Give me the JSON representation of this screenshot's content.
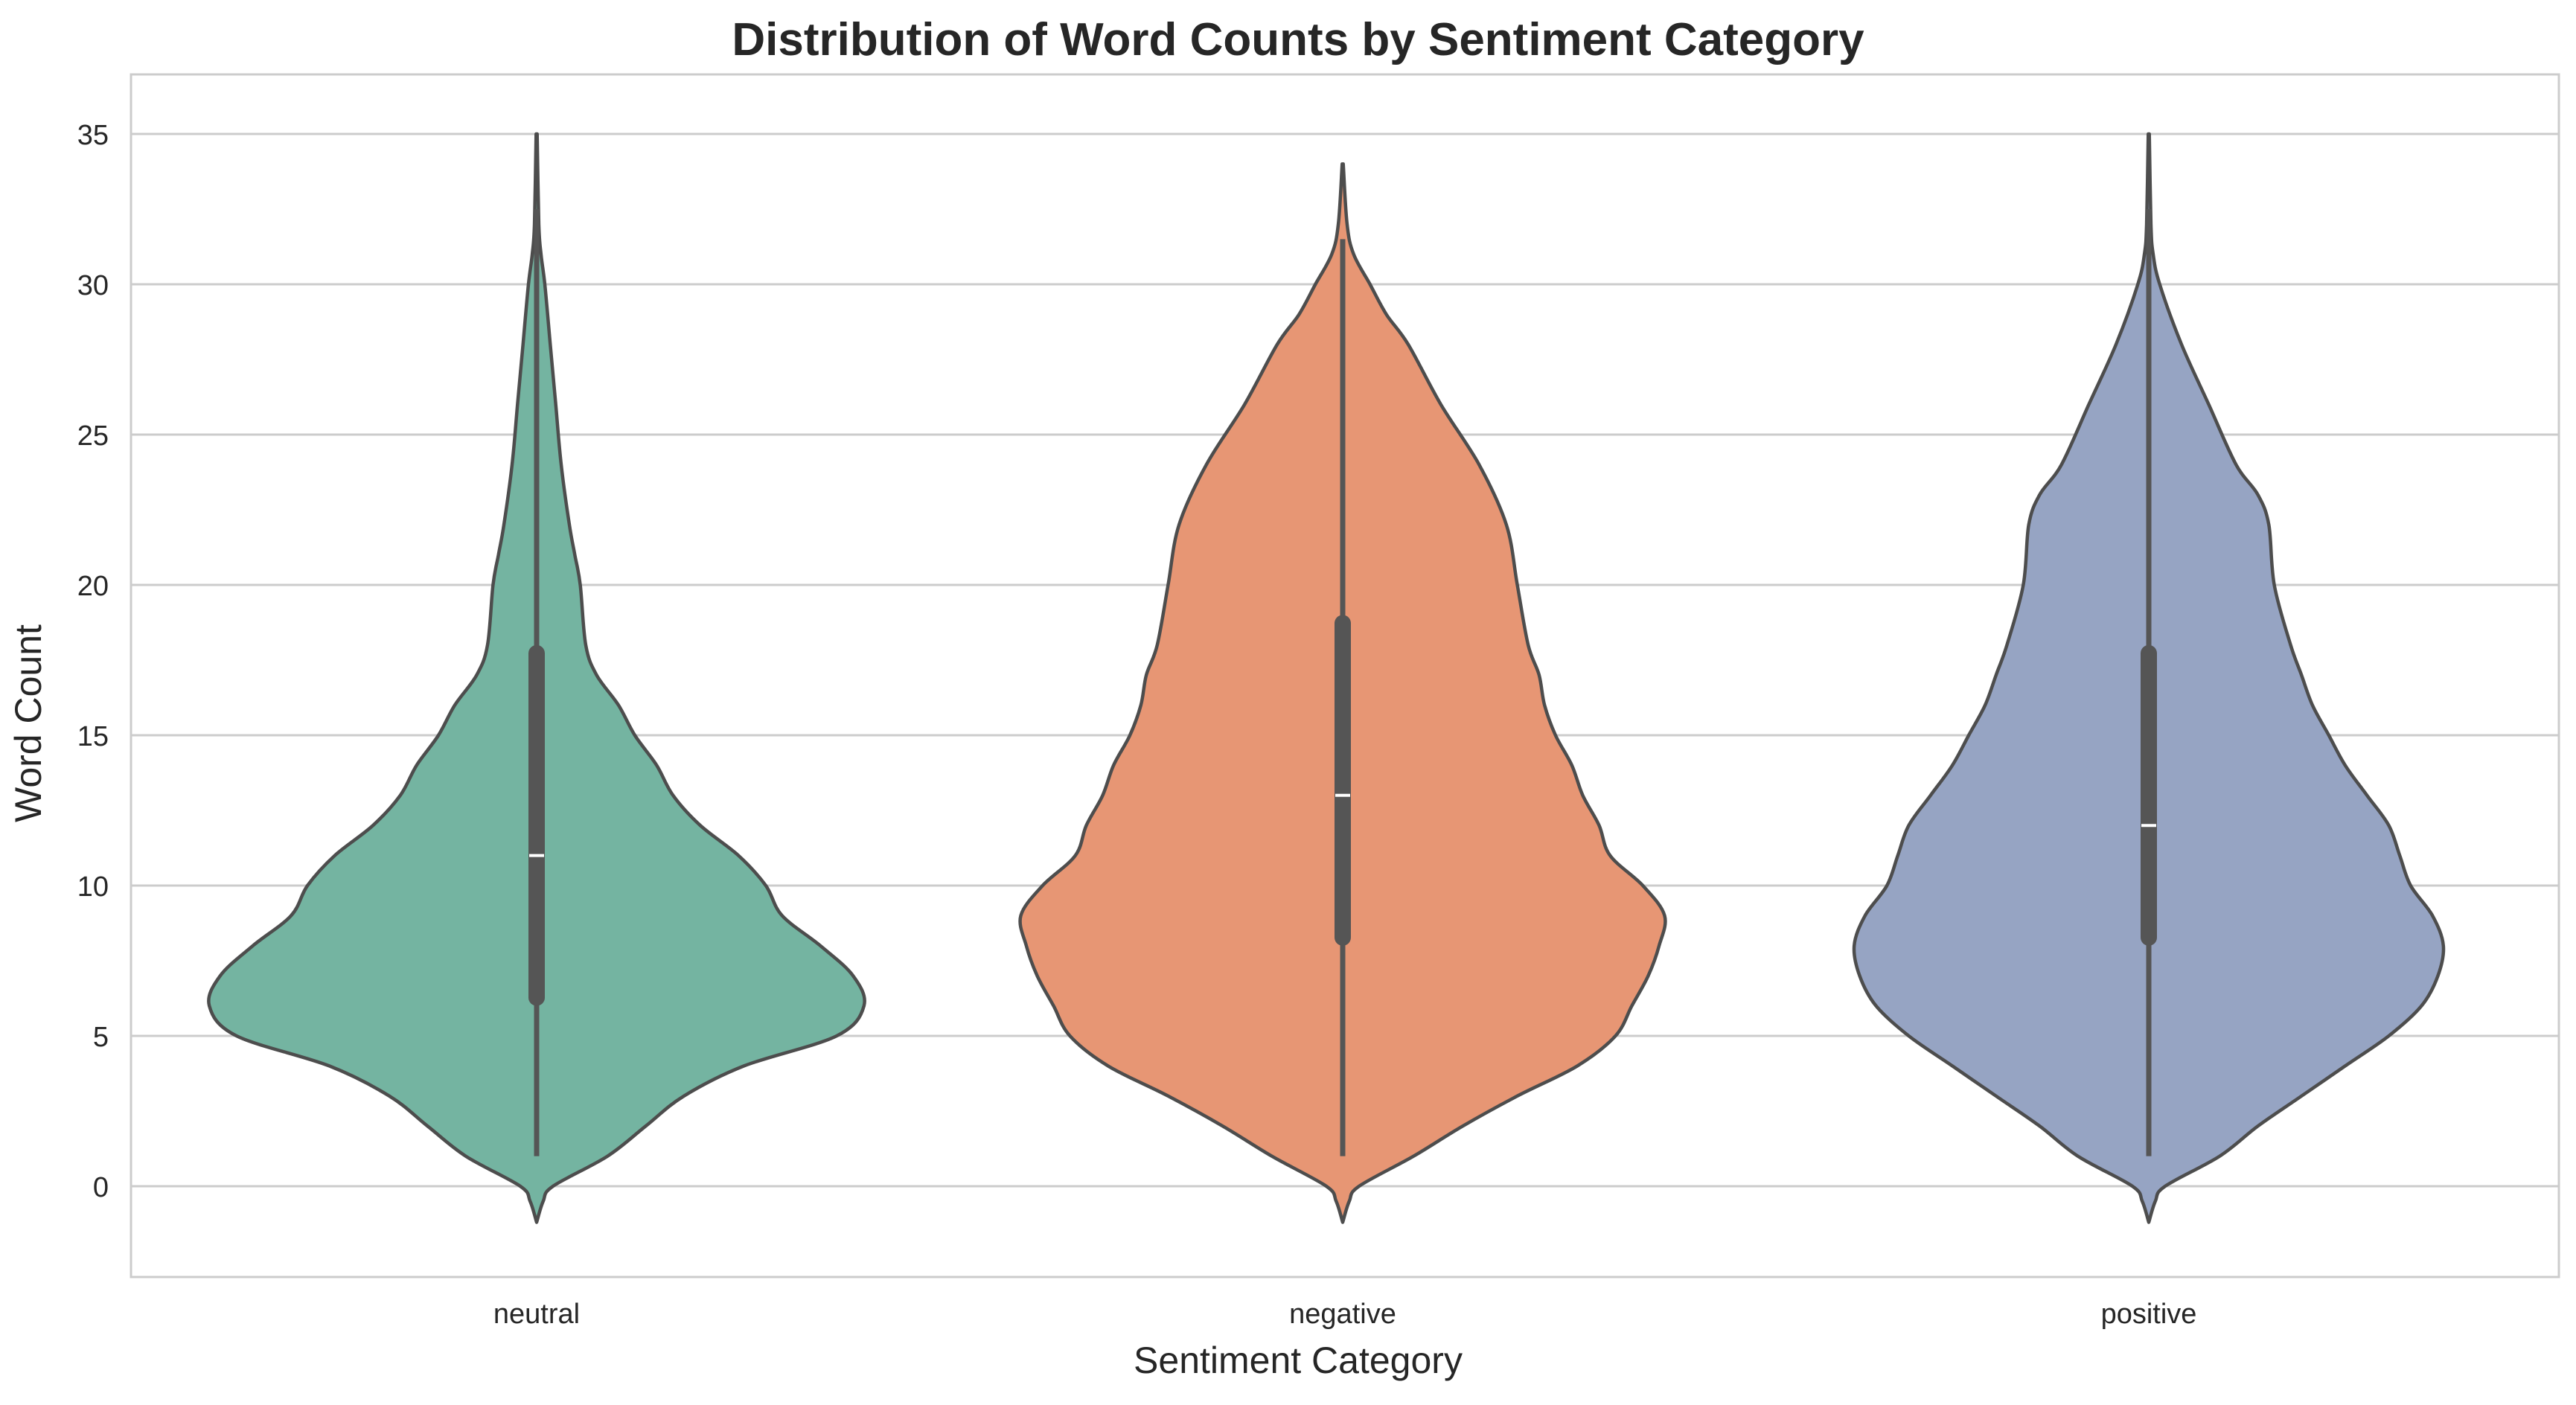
{
  "chart_data": {
    "type": "violin",
    "title": "Distribution of Word Counts by Sentiment Category",
    "xlabel": "Sentiment Category",
    "ylabel": "Word Count",
    "ylim": [
      -3,
      37
    ],
    "yticks": [
      "0",
      "5",
      "10",
      "15",
      "20",
      "25",
      "30",
      "35"
    ],
    "ytick_values": [
      0,
      5,
      10,
      15,
      20,
      25,
      30,
      35
    ],
    "grid": "horizontal",
    "categories": [
      "neutral",
      "negative",
      "positive"
    ],
    "series": [
      {
        "category": "neutral",
        "color": "#74b4a1",
        "min": 1,
        "q1": 6,
        "median": 11,
        "q3": 18,
        "max": 35,
        "kde_min": -1.2,
        "kde_max": 35,
        "density_width": [
          [
            -1.2,
            0
          ],
          [
            -0.5,
            0.012
          ],
          [
            0,
            0.03
          ],
          [
            1,
            0.13
          ],
          [
            2,
            0.2
          ],
          [
            3,
            0.27
          ],
          [
            4,
            0.38
          ],
          [
            5,
            0.55
          ],
          [
            6,
            0.6
          ],
          [
            7,
            0.58
          ],
          [
            8,
            0.52
          ],
          [
            9,
            0.45
          ],
          [
            10,
            0.42
          ],
          [
            11,
            0.37
          ],
          [
            12,
            0.3
          ],
          [
            13,
            0.25
          ],
          [
            14,
            0.22
          ],
          [
            15,
            0.18
          ],
          [
            16,
            0.15
          ],
          [
            17,
            0.11
          ],
          [
            18,
            0.09
          ],
          [
            20,
            0.08
          ],
          [
            21,
            0.07
          ],
          [
            22,
            0.06
          ],
          [
            24,
            0.045
          ],
          [
            26,
            0.035
          ],
          [
            28,
            0.025
          ],
          [
            30,
            0.015
          ],
          [
            31,
            0.008
          ],
          [
            32,
            0.004
          ],
          [
            35,
            0.001
          ]
        ]
      },
      {
        "category": "negative",
        "color": "#e79674",
        "min": 1,
        "q1": 8,
        "median": 13,
        "q3": 19,
        "max": 34,
        "kde_min": -1.2,
        "kde_max": 34,
        "density_width": [
          [
            -1.2,
            0
          ],
          [
            -0.5,
            0.012
          ],
          [
            0,
            0.03
          ],
          [
            1,
            0.13
          ],
          [
            2,
            0.22
          ],
          [
            3,
            0.32
          ],
          [
            4,
            0.43
          ],
          [
            5,
            0.5
          ],
          [
            6,
            0.53
          ],
          [
            7,
            0.56
          ],
          [
            8,
            0.58
          ],
          [
            9,
            0.59
          ],
          [
            10,
            0.55
          ],
          [
            11,
            0.49
          ],
          [
            12,
            0.47
          ],
          [
            13,
            0.44
          ],
          [
            14,
            0.42
          ],
          [
            15,
            0.39
          ],
          [
            16,
            0.37
          ],
          [
            17,
            0.36
          ],
          [
            18,
            0.34
          ],
          [
            20,
            0.32
          ],
          [
            22,
            0.3
          ],
          [
            24,
            0.25
          ],
          [
            26,
            0.18
          ],
          [
            28,
            0.12
          ],
          [
            29,
            0.08
          ],
          [
            30,
            0.05
          ],
          [
            31,
            0.02
          ],
          [
            32,
            0.008
          ],
          [
            34,
            0.001
          ]
        ]
      },
      {
        "category": "positive",
        "color": "#96a4c3",
        "min": 1,
        "q1": 8,
        "median": 12,
        "q3": 18,
        "max": 35,
        "kde_min": -1.2,
        "kde_max": 35,
        "density_width": [
          [
            -1.2,
            0
          ],
          [
            -0.5,
            0.012
          ],
          [
            0,
            0.03
          ],
          [
            1,
            0.13
          ],
          [
            2,
            0.2
          ],
          [
            3,
            0.28
          ],
          [
            4,
            0.36
          ],
          [
            5,
            0.44
          ],
          [
            6,
            0.5
          ],
          [
            7,
            0.53
          ],
          [
            8,
            0.54
          ],
          [
            9,
            0.52
          ],
          [
            10,
            0.48
          ],
          [
            11,
            0.46
          ],
          [
            12,
            0.44
          ],
          [
            13,
            0.4
          ],
          [
            14,
            0.36
          ],
          [
            15,
            0.33
          ],
          [
            16,
            0.3
          ],
          [
            17,
            0.28
          ],
          [
            18,
            0.26
          ],
          [
            20,
            0.23
          ],
          [
            22,
            0.22
          ],
          [
            23,
            0.2
          ],
          [
            24,
            0.16
          ],
          [
            26,
            0.11
          ],
          [
            28,
            0.06
          ],
          [
            30,
            0.02
          ],
          [
            31,
            0.008
          ],
          [
            32,
            0.004
          ],
          [
            35,
            0.001
          ]
        ]
      }
    ]
  },
  "colors": {
    "grid": "#cccccc",
    "frame": "#cccccc",
    "outline": "#4d4d4d",
    "box": "#555555",
    "median": "#ffffff"
  }
}
